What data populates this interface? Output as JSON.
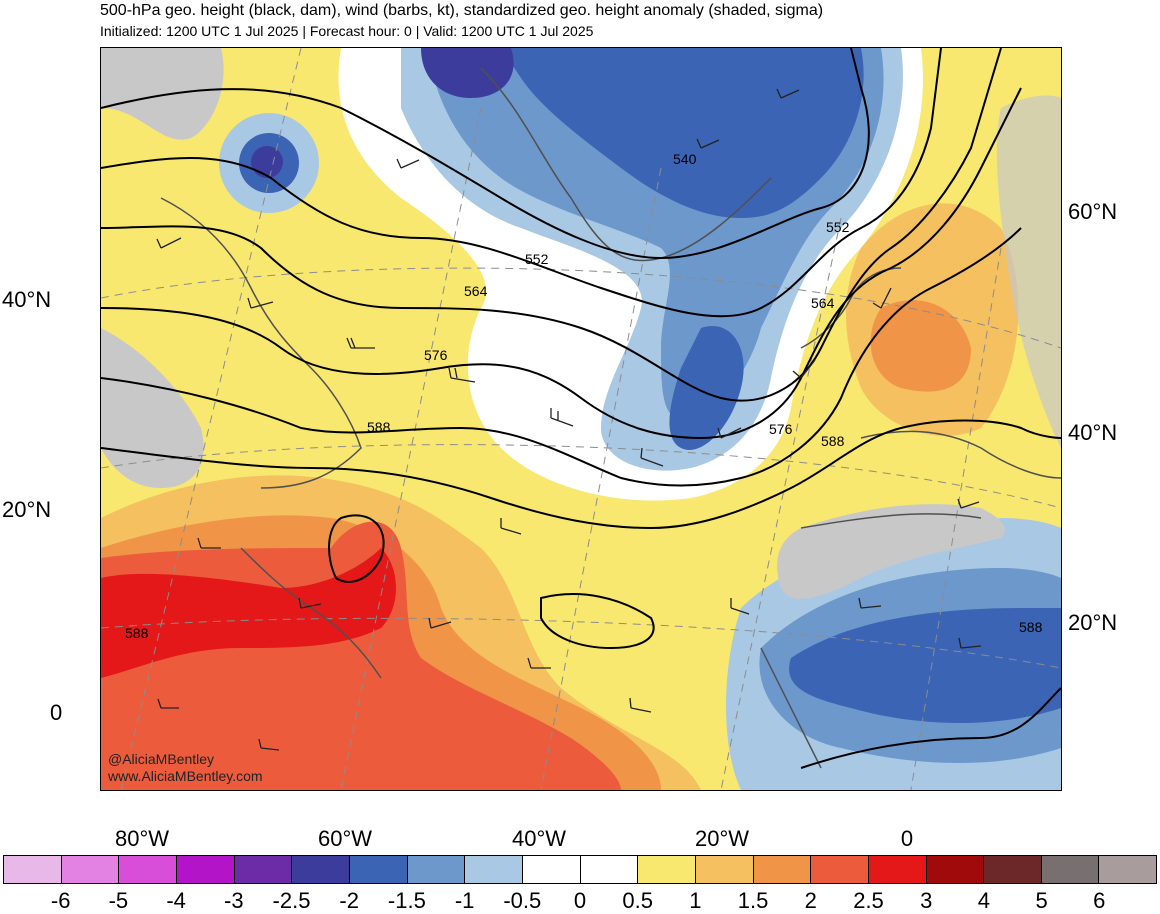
{
  "title": "500-hPa geo. height (black, dam), wind (barbs, kt), standardized geo. height anomaly (shaded, sigma)",
  "subtitle": "Initialized: 1200 UTC 1 Jul 2025 | Forecast hour: 0 | Valid: 1200 UTC 1 Jul 2025",
  "left_lat_labels": [
    "40°N",
    "20°N",
    "0"
  ],
  "right_lat_labels": [
    "60°N",
    "40°N",
    "20°N"
  ],
  "lon_labels": [
    "80°W",
    "60°W",
    "40°W",
    "20°W",
    "0"
  ],
  "contour_labels": [
    "540",
    "552",
    "552",
    "564",
    "564",
    "576",
    "576",
    "588",
    "588",
    "588",
    "588"
  ],
  "credits": [
    "@AliciaMBentley",
    "www.AliciaMBentley.com"
  ],
  "colorbar": {
    "ticks": [
      "-6",
      "-5",
      "-4",
      "-3",
      "-2.5",
      "-2",
      "-1.5",
      "-1",
      "-0.5",
      "0",
      "0.5",
      "1",
      "1.5",
      "2",
      "2.5",
      "3",
      "4",
      "5",
      "6"
    ],
    "colors": [
      "#e8b8e8",
      "#e482e4",
      "#d84ed8",
      "#b414c8",
      "#6c2ca8",
      "#3c3c9c",
      "#3c64b4",
      "#6c98cc",
      "#a8c8e4",
      "#ffffff",
      "#ffffff",
      "#f8e870",
      "#f4c060",
      "#f09448",
      "#ec5c3c",
      "#e41818",
      "#a00a0a",
      "#6c2828",
      "#787070",
      "#a89c9c"
    ]
  },
  "colors": {
    "land_gray": "#c8c8c8",
    "coast": "#505050",
    "contour": "#000000",
    "grid": "#8c8c8c"
  }
}
